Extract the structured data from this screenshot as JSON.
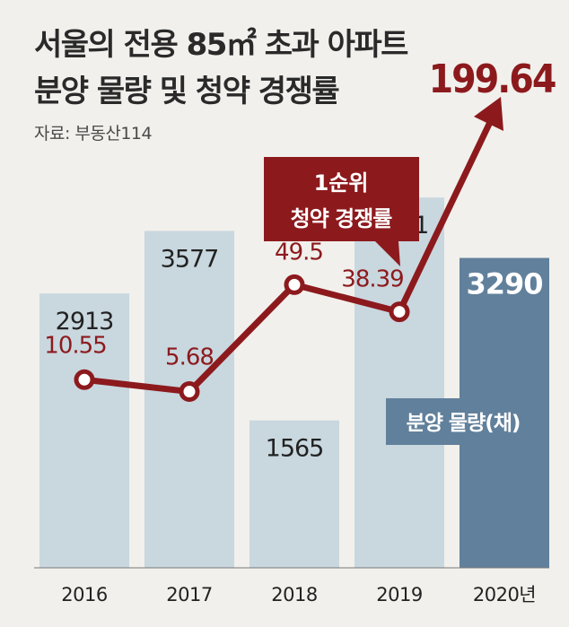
{
  "title_line1": "서울의 전용 85㎡ 초과 아파트",
  "title_line2": "분양 물량 및 청약 경쟁률",
  "source": "자료: 부동산114",
  "chart_data": {
    "type": "bar+line",
    "categories": [
      "2016",
      "2017",
      "2018",
      "2019",
      "2020년"
    ],
    "bars": {
      "name": "분양 물량(채)",
      "values": [
        2913,
        3577,
        1565,
        3931,
        3290
      ],
      "labels": [
        "2913",
        "3577",
        "1565",
        "3931",
        "3290"
      ]
    },
    "line": {
      "name_line1": "1순위",
      "name_line2": "청약 경쟁률",
      "values": [
        10.55,
        5.68,
        49.5,
        38.39,
        199.64
      ],
      "labels": [
        "10.55",
        "5.68",
        "49.5",
        "38.39",
        "199.64"
      ]
    },
    "colors": {
      "bar": "#c9d7df",
      "bar_highlight": "#61809b",
      "line": "#8c1a1d",
      "marker_fill": "#ffffff"
    }
  }
}
